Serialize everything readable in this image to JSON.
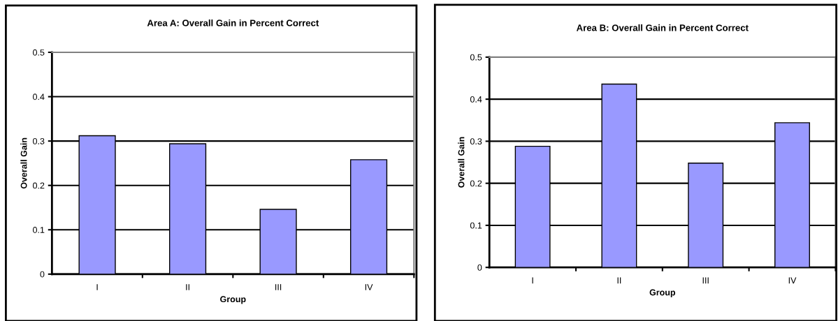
{
  "chart_data": [
    {
      "type": "bar",
      "title": "Area A: Overall Gain in Percent Correct",
      "xlabel": "Group",
      "ylabel": "Overall Gain",
      "categories": [
        "I",
        "II",
        "III",
        "IV"
      ],
      "series": [
        {
          "color": "#9999ff",
          "values": [
            0.312,
            0.294,
            0.146,
            0.258
          ]
        }
      ],
      "ylim": [
        0,
        0.5
      ],
      "yticks": [
        0,
        0.1,
        0.2,
        0.3,
        0.4,
        0.5
      ],
      "grid": "y",
      "legend": false
    },
    {
      "type": "bar",
      "title": "Area B: Overall Gain in Percent Correct",
      "xlabel": "Group",
      "ylabel": "Overall Gain",
      "categories": [
        "I",
        "II",
        "III",
        "IV"
      ],
      "series": [
        {
          "color": "#9999ff",
          "values": [
            0.288,
            0.436,
            0.248,
            0.344
          ]
        }
      ],
      "ylim": [
        0,
        0.5
      ],
      "yticks": [
        0,
        0.1,
        0.2,
        0.3,
        0.4,
        0.5
      ],
      "grid": "y",
      "legend": false
    }
  ]
}
